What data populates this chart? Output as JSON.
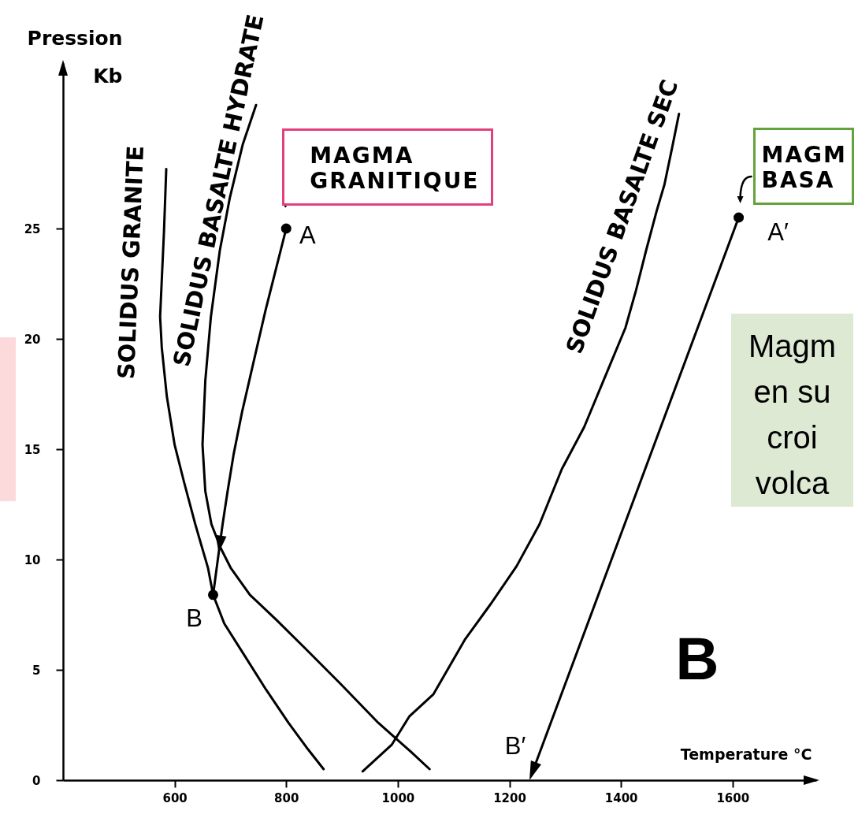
{
  "chart_data": {
    "type": "line",
    "xlabel": "Temperature °C",
    "ylabel": "Pression\nKb",
    "xlim": [
      400,
      1750
    ],
    "ylim": [
      0,
      32.5
    ],
    "xticks": [
      600,
      800,
      1000,
      1200,
      1400,
      1600
    ],
    "yticks": [
      0,
      5,
      10,
      15,
      20,
      25
    ],
    "line_style": "solid",
    "series": [
      {
        "name": "SOLIDUS GRANITE",
        "color": "#000000",
        "x": [
          585,
          581,
          574,
          577,
          586,
          600,
          617,
          637,
          660,
          669,
          689,
          724,
          764,
          804,
          839,
          867
        ],
        "values": [
          27.7,
          24.9,
          21,
          19.6,
          17.4,
          15.2,
          13.5,
          11.6,
          9.6,
          8.4,
          7.1,
          5.7,
          4.1,
          2.6,
          1.4,
          0.5
        ]
      },
      {
        "name": "SOLIDUS BASALTE HYDRATE",
        "color": "#000000",
        "x": [
          746,
          722,
          699,
          681,
          665,
          655,
          650,
          655,
          666,
          683,
          701,
          735,
          781,
          833,
          896,
          965,
          1023,
          1057
        ],
        "values": [
          30.6,
          28.8,
          26.4,
          24,
          21,
          18.1,
          15.2,
          13.1,
          11.6,
          10.5,
          9.6,
          8.4,
          7.3,
          6,
          4.4,
          2.6,
          1.3,
          0.5
        ]
      },
      {
        "name": "SOLIDUS BASALTE SEC",
        "color": "#000000",
        "x": [
          1504,
          1492,
          1478,
          1464,
          1445,
          1427,
          1408,
          1334,
          1294,
          1254,
          1213,
          1167,
          1121,
          1064,
          1021,
          989,
          937
        ],
        "values": [
          30.2,
          28.7,
          27,
          25.8,
          24,
          22.2,
          20.5,
          16,
          14.1,
          11.6,
          9.7,
          8,
          6.4,
          3.9,
          2.9,
          1.6,
          0.4
        ]
      },
      {
        "color": "#000000",
        "x": [
          800,
          781,
          763,
          741,
          721,
          706,
          695,
          686,
          679,
          669
        ],
        "values": [
          25,
          23.1,
          21.3,
          18.9,
          16.7,
          14.8,
          13.1,
          11.6,
          10.3,
          8.4
        ]
      },
      {
        "type": "scatter",
        "marker": "circle",
        "color": "#000000",
        "x": [
          800,
          669,
          1611
        ],
        "values": [
          25,
          8.4,
          25.5
        ]
      }
    ],
    "annotations": [
      {
        "text": "A",
        "x": 800,
        "y": 25
      },
      {
        "text": "B",
        "x": 669,
        "y": 8.4
      },
      {
        "text": "A′",
        "x": 1611,
        "y": 25.5
      },
      "B′",
      {
        "text": "MAGMA\nGRANITIQUE",
        "x": 800,
        "y": 25
      },
      {
        "text": "MAGM\nBASA",
        "x": 1611,
        "y": 25.5
      },
      "Magm\nen su\ncroi\nvolca",
      "B"
    ]
  }
}
